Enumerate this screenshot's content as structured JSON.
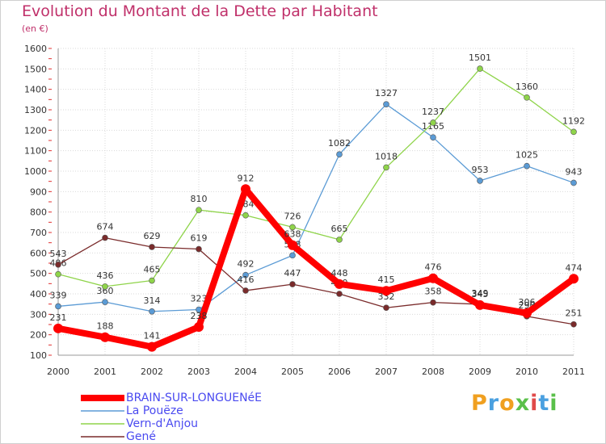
{
  "chart_data": {
    "type": "line",
    "title": "Evolution du Montant de la Dette par Habitant",
    "subtitle": "(en €)",
    "categories": [
      "2000",
      "2001",
      "2002",
      "2003",
      "2004",
      "2005",
      "2006",
      "2007",
      "2008",
      "2009",
      "2010",
      "2011"
    ],
    "ylim": [
      100,
      1600
    ],
    "yticks": [
      "100",
      "200",
      "300",
      "400",
      "500",
      "600",
      "700",
      "800",
      "900",
      "1000",
      "1100",
      "1200",
      "1300",
      "1400",
      "1500",
      "1600"
    ],
    "grid": true,
    "legend_position": "bottom-left",
    "series": [
      {
        "name": "La Pouëze",
        "color": "#5b9bd5",
        "values": [
          339,
          360,
          314,
          323,
          492,
          588,
          1082,
          1327,
          1165,
          953,
          1025,
          943
        ]
      },
      {
        "name": "Vern-d'Anjou",
        "color": "#8fd44a",
        "values": [
          496,
          436,
          465,
          810,
          784,
          726,
          665,
          1018,
          1237,
          1501,
          1360,
          1192
        ]
      },
      {
        "name": "Gené",
        "color": "#7a2b2b",
        "values": [
          543,
          674,
          629,
          619,
          416,
          447,
          400,
          332,
          358,
          349,
          290,
          251
        ]
      },
      {
        "name": "BRAIN-SUR-LONGUENéE",
        "color": "#ff0000",
        "values": [
          231,
          188,
          141,
          238,
          912,
          638,
          448,
          415,
          476,
          345,
          306,
          474
        ]
      }
    ]
  },
  "brand": {
    "letters": [
      "P",
      "r",
      "o",
      "x",
      "i",
      "t",
      "i"
    ],
    "colors": [
      "#f0a020",
      "#4aa0e0",
      "#f0a020",
      "#5ac04a",
      "#e04a4a",
      "#4aa0e0",
      "#5ac04a"
    ]
  }
}
